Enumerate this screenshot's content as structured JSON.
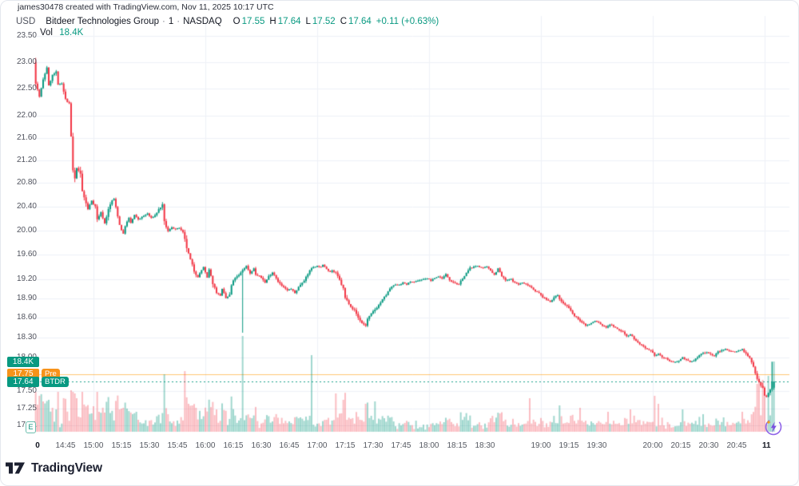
{
  "attribution": "james30478 created with TradingView.com, Nov 11, 2025 10:17 UTC",
  "legend": {
    "currency": "USD",
    "symbol_title": "Bitdeer Technologies Group",
    "interval": "1",
    "exchange": "NASDAQ",
    "separator": "·",
    "ohlc": [
      {
        "label": "O",
        "value": "17.55"
      },
      {
        "label": "H",
        "value": "17.64"
      },
      {
        "label": "L",
        "value": "17.52"
      },
      {
        "label": "C",
        "value": "17.64"
      }
    ],
    "change": "+0.11 (+0.63%)",
    "vol_label": "Vol",
    "vol_value": "18.4K"
  },
  "badges": {
    "volume_value": "18.4K",
    "pre_price": "17.75",
    "pre_tag": "Pre",
    "last_price": "17.64",
    "last_tag": "BTDR",
    "session_marker": "E"
  },
  "footer": {
    "logo_text": "TradingView"
  },
  "colors": {
    "up": "#089981",
    "down": "#F23645",
    "orange": "#FF9800",
    "grid": "#eef1f7",
    "axis_text": "#50535e",
    "vol_up": "rgba(8,153,129,0.38)",
    "vol_down": "rgba(242,54,69,0.32)"
  },
  "chart_data": {
    "type": "candlestick",
    "symbol": "BTDR",
    "title": "Bitdeer Technologies Group · 1 · NASDAQ",
    "timezone": "UTC",
    "y_axis": {
      "scale": "log",
      "labels": [
        "23.50",
        "23.00",
        "22.50",
        "22.00",
        "21.60",
        "21.20",
        "20.80",
        "20.40",
        "20.00",
        "19.60",
        "19.20",
        "18.90",
        "18.60",
        "18.30",
        "18.00",
        "17.50",
        "17.25",
        "17.01"
      ],
      "range": [
        17.01,
        23.5
      ]
    },
    "x_axis": {
      "start_time": "14:30",
      "labels": [
        {
          "m": 0,
          "t": "0",
          "bold": true
        },
        {
          "m": 15,
          "t": "14:45"
        },
        {
          "m": 30,
          "t": "15:00"
        },
        {
          "m": 45,
          "t": "15:15"
        },
        {
          "m": 60,
          "t": "15:30"
        },
        {
          "m": 75,
          "t": "15:45"
        },
        {
          "m": 90,
          "t": "16:00"
        },
        {
          "m": 105,
          "t": "16:15"
        },
        {
          "m": 120,
          "t": "16:30"
        },
        {
          "m": 135,
          "t": "16:45"
        },
        {
          "m": 150,
          "t": "17:00"
        },
        {
          "m": 165,
          "t": "17:15"
        },
        {
          "m": 180,
          "t": "17:30"
        },
        {
          "m": 195,
          "t": "17:45"
        },
        {
          "m": 210,
          "t": "18:00"
        },
        {
          "m": 225,
          "t": "18:15"
        },
        {
          "m": 240,
          "t": "18:30"
        },
        {
          "m": 270,
          "t": "19:00"
        },
        {
          "m": 285,
          "t": "19:15"
        },
        {
          "m": 300,
          "t": "19:30"
        },
        {
          "m": 330,
          "t": "20:00"
        },
        {
          "m": 345,
          "t": "20:15"
        },
        {
          "m": 360,
          "t": "20:30"
        },
        {
          "m": 375,
          "t": "20:45"
        },
        {
          "m": 391,
          "t": "11",
          "bold": true
        }
      ],
      "hour_grid_m": [
        30,
        90,
        150,
        210,
        270,
        330,
        390
      ]
    },
    "price_lines": [
      {
        "price": 17.75,
        "label": "Pre",
        "color": "#FF9800",
        "style": "solid"
      },
      {
        "price": 17.64,
        "label": "BTDR",
        "color": "#089981",
        "style": "dashed"
      }
    ],
    "last_candle": {
      "o": 17.55,
      "h": 17.64,
      "l": 17.52,
      "c": 17.64
    },
    "last_volume": "18.4K",
    "price_path": [
      [
        -1,
        23.0
      ],
      [
        0,
        22.62
      ],
      [
        2,
        22.35
      ],
      [
        4,
        22.65
      ],
      [
        6,
        22.9
      ],
      [
        7,
        22.55
      ],
      [
        9,
        22.75
      ],
      [
        11,
        22.8
      ],
      [
        12,
        22.55
      ],
      [
        14,
        22.6
      ],
      [
        16,
        22.3
      ],
      [
        18,
        22.2
      ],
      [
        19,
        21.6
      ],
      [
        20,
        21.0
      ],
      [
        21,
        20.85
      ],
      [
        22,
        21.05
      ],
      [
        24,
        20.95
      ],
      [
        25,
        20.65
      ],
      [
        27,
        20.45
      ],
      [
        28,
        20.35
      ],
      [
        30,
        20.5
      ],
      [
        32,
        20.4
      ],
      [
        33,
        20.18
      ],
      [
        35,
        20.3
      ],
      [
        37,
        20.12
      ],
      [
        39,
        20.35
      ],
      [
        41,
        20.5
      ],
      [
        42,
        20.52
      ],
      [
        44,
        20.25
      ],
      [
        45,
        20.1
      ],
      [
        47,
        19.95
      ],
      [
        48,
        20.08
      ],
      [
        50,
        20.2
      ],
      [
        51,
        20.12
      ],
      [
        53,
        20.25
      ],
      [
        55,
        20.18
      ],
      [
        57,
        20.22
      ],
      [
        60,
        20.28
      ],
      [
        62,
        20.2
      ],
      [
        64,
        20.25
      ],
      [
        66,
        20.35
      ],
      [
        68,
        20.42
      ],
      [
        69,
        20.12
      ],
      [
        71,
        19.98
      ],
      [
        73,
        20.05
      ],
      [
        75,
        20.02
      ],
      [
        77,
        20.04
      ],
      [
        79,
        19.95
      ],
      [
        81,
        19.7
      ],
      [
        83,
        19.5
      ],
      [
        85,
        19.32
      ],
      [
        87,
        19.25
      ],
      [
        90,
        19.4
      ],
      [
        92,
        19.22
      ],
      [
        93,
        19.35
      ],
      [
        95,
        19.14
      ],
      [
        97,
        19.0
      ],
      [
        99,
        18.95
      ],
      [
        100,
        19.05
      ],
      [
        102,
        18.9
      ],
      [
        104,
        18.95
      ],
      [
        105,
        19.1
      ],
      [
        107,
        19.22
      ],
      [
        109,
        19.26
      ],
      [
        110,
        19.3
      ],
      [
        111,
        19.35
      ],
      [
        113,
        19.42
      ],
      [
        115,
        19.3
      ],
      [
        117,
        19.38
      ],
      [
        118,
        19.28
      ],
      [
        120,
        19.25
      ],
      [
        122,
        19.2
      ],
      [
        123,
        19.15
      ],
      [
        125,
        19.25
      ],
      [
        127,
        19.32
      ],
      [
        128,
        19.28
      ],
      [
        130,
        19.18
      ],
      [
        132,
        19.1
      ],
      [
        134,
        19.05
      ],
      [
        135,
        19.02
      ],
      [
        137,
        19.05
      ],
      [
        139,
        18.98
      ],
      [
        141,
        19.08
      ],
      [
        142,
        19.12
      ],
      [
        144,
        19.2
      ],
      [
        146,
        19.28
      ],
      [
        147,
        19.35
      ],
      [
        149,
        19.4
      ],
      [
        151,
        19.42
      ],
      [
        153,
        19.4
      ],
      [
        154,
        19.43
      ],
      [
        156,
        19.38
      ],
      [
        158,
        19.33
      ],
      [
        159,
        19.35
      ],
      [
        161,
        19.3
      ],
      [
        163,
        19.18
      ],
      [
        165,
        19.05
      ],
      [
        166,
        18.9
      ],
      [
        168,
        18.82
      ],
      [
        170,
        18.75
      ],
      [
        171,
        18.72
      ],
      [
        173,
        18.6
      ],
      [
        175,
        18.52
      ],
      [
        177,
        18.48
      ],
      [
        178,
        18.58
      ],
      [
        180,
        18.65
      ],
      [
        182,
        18.72
      ],
      [
        184,
        18.8
      ],
      [
        186,
        18.88
      ],
      [
        188,
        18.95
      ],
      [
        190,
        19.05
      ],
      [
        192,
        19.1
      ],
      [
        195,
        19.12
      ],
      [
        197,
        19.15
      ],
      [
        199,
        19.12
      ],
      [
        201,
        19.17
      ],
      [
        203,
        19.15
      ],
      [
        205,
        19.18
      ],
      [
        207,
        19.2
      ],
      [
        210,
        19.22
      ],
      [
        212,
        19.18
      ],
      [
        214,
        19.22
      ],
      [
        216,
        19.25
      ],
      [
        218,
        19.22
      ],
      [
        220,
        19.28
      ],
      [
        222,
        19.2
      ],
      [
        225,
        19.15
      ],
      [
        227,
        19.12
      ],
      [
        229,
        19.22
      ],
      [
        231,
        19.3
      ],
      [
        233,
        19.38
      ],
      [
        235,
        19.4
      ],
      [
        237,
        19.42
      ],
      [
        240,
        19.38
      ],
      [
        242,
        19.4
      ],
      [
        244,
        19.35
      ],
      [
        246,
        19.28
      ],
      [
        248,
        19.38
      ],
      [
        250,
        19.25
      ],
      [
        252,
        19.18
      ],
      [
        255,
        19.2
      ],
      [
        257,
        19.15
      ],
      [
        259,
        19.12
      ],
      [
        261,
        19.15
      ],
      [
        263,
        19.12
      ],
      [
        265,
        19.1
      ],
      [
        267,
        19.05
      ],
      [
        270,
        18.98
      ],
      [
        272,
        18.92
      ],
      [
        274,
        18.88
      ],
      [
        276,
        18.85
      ],
      [
        278,
        18.92
      ],
      [
        280,
        18.95
      ],
      [
        282,
        18.85
      ],
      [
        285,
        18.78
      ],
      [
        287,
        18.7
      ],
      [
        289,
        18.62
      ],
      [
        291,
        18.58
      ],
      [
        293,
        18.52
      ],
      [
        295,
        18.48
      ],
      [
        297,
        18.5
      ],
      [
        300,
        18.55
      ],
      [
        302,
        18.52
      ],
      [
        304,
        18.48
      ],
      [
        306,
        18.45
      ],
      [
        308,
        18.5
      ],
      [
        310,
        18.47
      ],
      [
        312,
        18.42
      ],
      [
        315,
        18.38
      ],
      [
        317,
        18.32
      ],
      [
        319,
        18.35
      ],
      [
        321,
        18.28
      ],
      [
        323,
        18.22
      ],
      [
        325,
        18.18
      ],
      [
        327,
        18.12
      ],
      [
        330,
        18.08
      ],
      [
        332,
        18.02
      ],
      [
        334,
        18.05
      ],
      [
        336,
        18.0
      ],
      [
        338,
        17.98
      ],
      [
        340,
        17.95
      ],
      [
        342,
        17.92
      ],
      [
        345,
        17.95
      ],
      [
        347,
        18.0
      ],
      [
        349,
        17.96
      ],
      [
        351,
        17.92
      ],
      [
        353,
        17.95
      ],
      [
        355,
        18.0
      ],
      [
        357,
        18.05
      ],
      [
        360,
        18.08
      ],
      [
        362,
        18.05
      ],
      [
        364,
        18.02
      ],
      [
        366,
        18.08
      ],
      [
        368,
        18.1
      ],
      [
        370,
        18.12
      ],
      [
        372,
        18.1
      ],
      [
        375,
        18.08
      ],
      [
        377,
        18.1
      ],
      [
        379,
        18.12
      ],
      [
        381,
        18.05
      ],
      [
        383,
        17.98
      ],
      [
        385,
        17.85
      ],
      [
        387,
        17.7
      ],
      [
        390,
        17.55
      ],
      [
        391,
        17.45
      ],
      [
        392,
        17.42
      ],
      [
        394,
        17.52
      ],
      [
        395,
        17.64
      ]
    ],
    "wick_events": [
      {
        "m": -1,
        "side": "high",
        "price": 23.08
      },
      {
        "m": 110,
        "side": "low",
        "price": 18.37
      },
      {
        "m": 394,
        "side": "high",
        "price": 17.93
      }
    ],
    "volume_spikes": [
      [
        1,
        45,
        "d"
      ],
      [
        3,
        38,
        "d"
      ],
      [
        6,
        40,
        "u"
      ],
      [
        8,
        30,
        "d"
      ],
      [
        10,
        28,
        "u"
      ],
      [
        18,
        52,
        "d"
      ],
      [
        20,
        48,
        "d"
      ],
      [
        21,
        42,
        "d"
      ],
      [
        30,
        32,
        "d"
      ],
      [
        33,
        25,
        "d"
      ],
      [
        44,
        28,
        "d"
      ],
      [
        46,
        30,
        "d"
      ],
      [
        53,
        25,
        "u"
      ],
      [
        68,
        72,
        "u"
      ],
      [
        79,
        76,
        "d"
      ],
      [
        81,
        35,
        "d"
      ],
      [
        83,
        33,
        "d"
      ],
      [
        85,
        30,
        "d"
      ],
      [
        96,
        28,
        "d"
      ],
      [
        110,
        120,
        "u"
      ],
      [
        147,
        96,
        "u"
      ],
      [
        160,
        48,
        "d"
      ],
      [
        164,
        40,
        "d"
      ],
      [
        176,
        35,
        "d"
      ],
      [
        181,
        38,
        "u"
      ],
      [
        264,
        42,
        "d"
      ],
      [
        280,
        33,
        "u"
      ],
      [
        291,
        30,
        "d"
      ],
      [
        306,
        25,
        "d"
      ],
      [
        318,
        28,
        "d"
      ],
      [
        331,
        45,
        "d"
      ],
      [
        333,
        35,
        "d"
      ],
      [
        346,
        28,
        "u"
      ],
      [
        357,
        22,
        "u"
      ],
      [
        368,
        18,
        "u"
      ],
      [
        378,
        25,
        "d"
      ],
      [
        386,
        60,
        "d"
      ],
      [
        387,
        70,
        "d"
      ],
      [
        389,
        65,
        "d"
      ],
      [
        390,
        50,
        "d"
      ],
      [
        392,
        70,
        "u"
      ],
      [
        394,
        88,
        "u"
      ],
      [
        395,
        88,
        "u"
      ]
    ]
  }
}
